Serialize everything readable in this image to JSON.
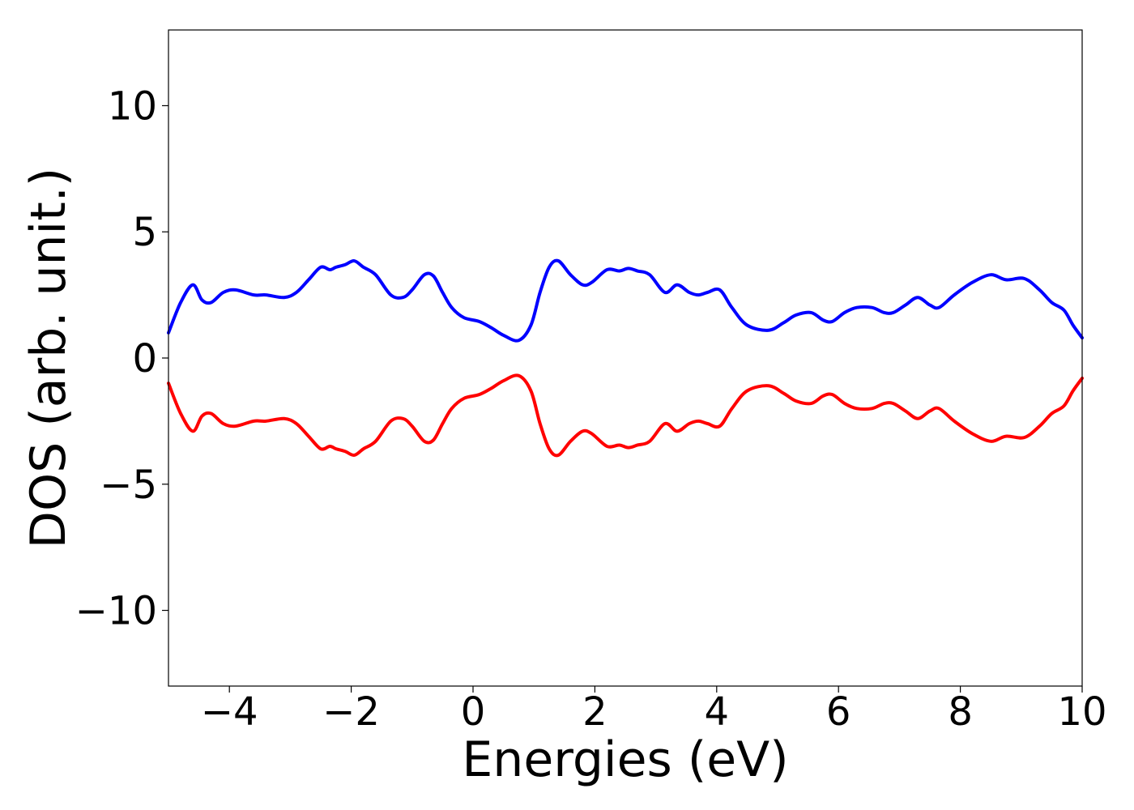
{
  "chart_data": {
    "type": "line",
    "title": "",
    "xlabel": "Energies (eV)",
    "ylabel": "DOS (arb. unit.)",
    "xlim": [
      -5,
      10
    ],
    "ylim": [
      -13,
      13
    ],
    "xticks": [
      -4,
      -2,
      0,
      2,
      4,
      6,
      8,
      10
    ],
    "xtick_labels": [
      "−4",
      "−2",
      "0",
      "2",
      "4",
      "6",
      "8",
      "10"
    ],
    "yticks": [
      -10,
      -5,
      0,
      5,
      10
    ],
    "ytick_labels": [
      "−10",
      "−5",
      "0",
      "5",
      "10"
    ],
    "grid": false,
    "legend": "none",
    "series": [
      {
        "color": "#0000ff",
        "x": [
          -5.0,
          -4.8,
          -4.6,
          -4.45,
          -4.3,
          -4.1,
          -3.9,
          -3.6,
          -3.4,
          -3.1,
          -2.9,
          -2.7,
          -2.5,
          -2.35,
          -2.25,
          -2.1,
          -1.95,
          -1.8,
          -1.6,
          -1.35,
          -1.15,
          -1.0,
          -0.8,
          -0.65,
          -0.5,
          -0.35,
          -0.15,
          0.1,
          0.3,
          0.5,
          0.75,
          0.95,
          1.1,
          1.25,
          1.4,
          1.6,
          1.8,
          1.95,
          2.2,
          2.4,
          2.55,
          2.7,
          2.9,
          3.15,
          3.35,
          3.55,
          3.7,
          3.85,
          4.05,
          4.25,
          4.5,
          4.85,
          5.1,
          5.3,
          5.55,
          5.75,
          5.9,
          6.1,
          6.3,
          6.55,
          6.75,
          6.9,
          7.1,
          7.3,
          7.5,
          7.65,
          7.9,
          8.2,
          8.5,
          8.75,
          9.05,
          9.3,
          9.5,
          9.7,
          9.85,
          10.0
        ],
        "values": [
          1.0,
          2.2,
          2.9,
          2.3,
          2.2,
          2.6,
          2.7,
          2.5,
          2.5,
          2.4,
          2.6,
          3.1,
          3.6,
          3.5,
          3.6,
          3.7,
          3.85,
          3.6,
          3.3,
          2.5,
          2.4,
          2.7,
          3.3,
          3.25,
          2.6,
          2.0,
          1.6,
          1.45,
          1.2,
          0.9,
          0.7,
          1.3,
          2.6,
          3.6,
          3.85,
          3.3,
          2.9,
          3.0,
          3.5,
          3.45,
          3.55,
          3.45,
          3.3,
          2.6,
          2.9,
          2.6,
          2.5,
          2.6,
          2.7,
          2.0,
          1.3,
          1.1,
          1.4,
          1.7,
          1.8,
          1.5,
          1.45,
          1.8,
          2.0,
          2.0,
          1.8,
          1.8,
          2.1,
          2.4,
          2.1,
          2.0,
          2.5,
          3.0,
          3.3,
          3.1,
          3.15,
          2.7,
          2.2,
          1.9,
          1.3,
          0.8
        ]
      },
      {
        "color": "#ff0000",
        "x": [
          -5.0,
          -4.8,
          -4.6,
          -4.45,
          -4.3,
          -4.1,
          -3.9,
          -3.6,
          -3.4,
          -3.1,
          -2.9,
          -2.7,
          -2.5,
          -2.35,
          -2.25,
          -2.1,
          -1.95,
          -1.8,
          -1.6,
          -1.35,
          -1.15,
          -1.0,
          -0.8,
          -0.65,
          -0.5,
          -0.35,
          -0.15,
          0.1,
          0.3,
          0.5,
          0.75,
          0.95,
          1.1,
          1.25,
          1.4,
          1.6,
          1.8,
          1.95,
          2.2,
          2.4,
          2.55,
          2.7,
          2.9,
          3.15,
          3.35,
          3.55,
          3.7,
          3.85,
          4.05,
          4.25,
          4.5,
          4.85,
          5.1,
          5.3,
          5.55,
          5.75,
          5.9,
          6.1,
          6.3,
          6.55,
          6.75,
          6.9,
          7.1,
          7.3,
          7.5,
          7.65,
          7.9,
          8.2,
          8.5,
          8.75,
          9.05,
          9.3,
          9.5,
          9.7,
          9.85,
          10.0
        ],
        "values": [
          -1.0,
          -2.2,
          -2.9,
          -2.3,
          -2.2,
          -2.6,
          -2.7,
          -2.5,
          -2.5,
          -2.4,
          -2.6,
          -3.1,
          -3.6,
          -3.5,
          -3.6,
          -3.7,
          -3.85,
          -3.6,
          -3.3,
          -2.5,
          -2.4,
          -2.7,
          -3.3,
          -3.25,
          -2.6,
          -2.0,
          -1.6,
          -1.45,
          -1.2,
          -0.9,
          -0.7,
          -1.3,
          -2.6,
          -3.6,
          -3.85,
          -3.3,
          -2.9,
          -3.0,
          -3.5,
          -3.45,
          -3.55,
          -3.45,
          -3.3,
          -2.6,
          -2.9,
          -2.6,
          -2.5,
          -2.6,
          -2.7,
          -2.0,
          -1.3,
          -1.1,
          -1.4,
          -1.7,
          -1.8,
          -1.5,
          -1.45,
          -1.8,
          -2.0,
          -2.0,
          -1.8,
          -1.8,
          -2.1,
          -2.4,
          -2.1,
          -2.0,
          -2.5,
          -3.0,
          -3.3,
          -3.1,
          -3.15,
          -2.7,
          -2.2,
          -1.9,
          -1.3,
          -0.8
        ]
      }
    ]
  }
}
